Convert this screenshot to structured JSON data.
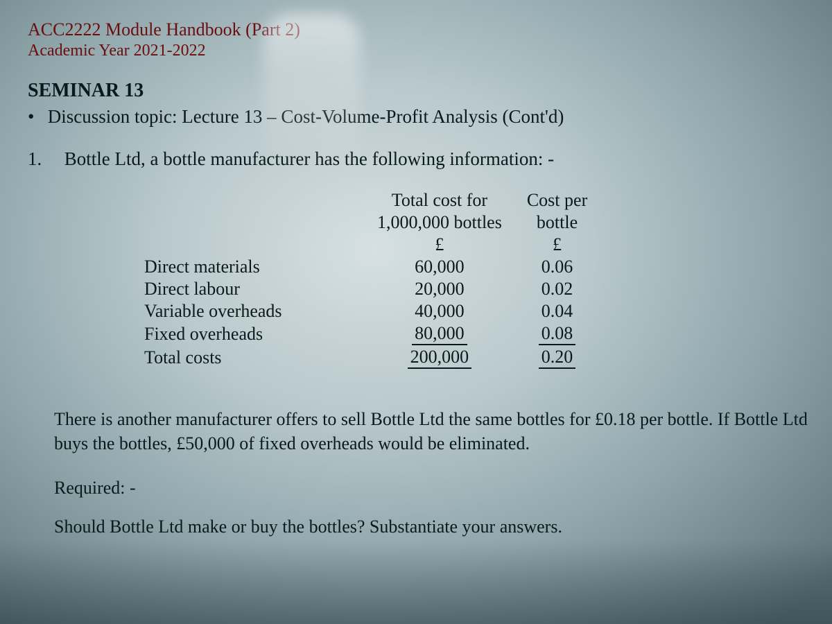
{
  "header": {
    "module_line": "ACC2222 Module Handbook (Part 2)",
    "year_line": "Academic Year 2021-2022"
  },
  "seminar": {
    "title": "SEMINAR 13",
    "topic_label": "Discussion topic:",
    "topic_value": "Lecture 13 – Cost-Volume-Profit Analysis (Cont'd)"
  },
  "question": {
    "number": "1.",
    "text": "Bottle Ltd, a bottle manufacturer has the following information: -"
  },
  "cost_table": {
    "col_headers": {
      "total_line1": "Total cost for",
      "total_line2": "1,000,000 bottles",
      "unit_line1": "Cost per",
      "unit_line2": "bottle",
      "currency": "£"
    },
    "rows": [
      {
        "label": "Direct materials",
        "total": "60,000",
        "unit": "0.06"
      },
      {
        "label": "Direct labour",
        "total": "20,000",
        "unit": "0.02"
      },
      {
        "label": "Variable overheads",
        "total": "40,000",
        "unit": "0.04"
      },
      {
        "label": "Fixed overheads",
        "total": "80,000",
        "unit": "0.08"
      },
      {
        "label": "Total costs",
        "total": "200,000",
        "unit": "0.20"
      }
    ]
  },
  "paragraph": "There is another manufacturer offers to sell Bottle Ltd the same bottles for £0.18 per bottle. If Bottle Ltd buys the bottles, £50,000 of fixed overheads would be eliminated.",
  "required_label": "Required: -",
  "required_question": "Should Bottle Ltd make or buy the bottles? Substantiate your answers.",
  "style": {
    "header_color": "#6a0e0e",
    "body_color": "#0a1a1c",
    "font_family": "Times New Roman",
    "base_fontsize_pt": 20,
    "background_gradient": [
      "#d6e0e2",
      "#b8c8cc",
      "#8fa6ab",
      "#5d7378"
    ]
  }
}
